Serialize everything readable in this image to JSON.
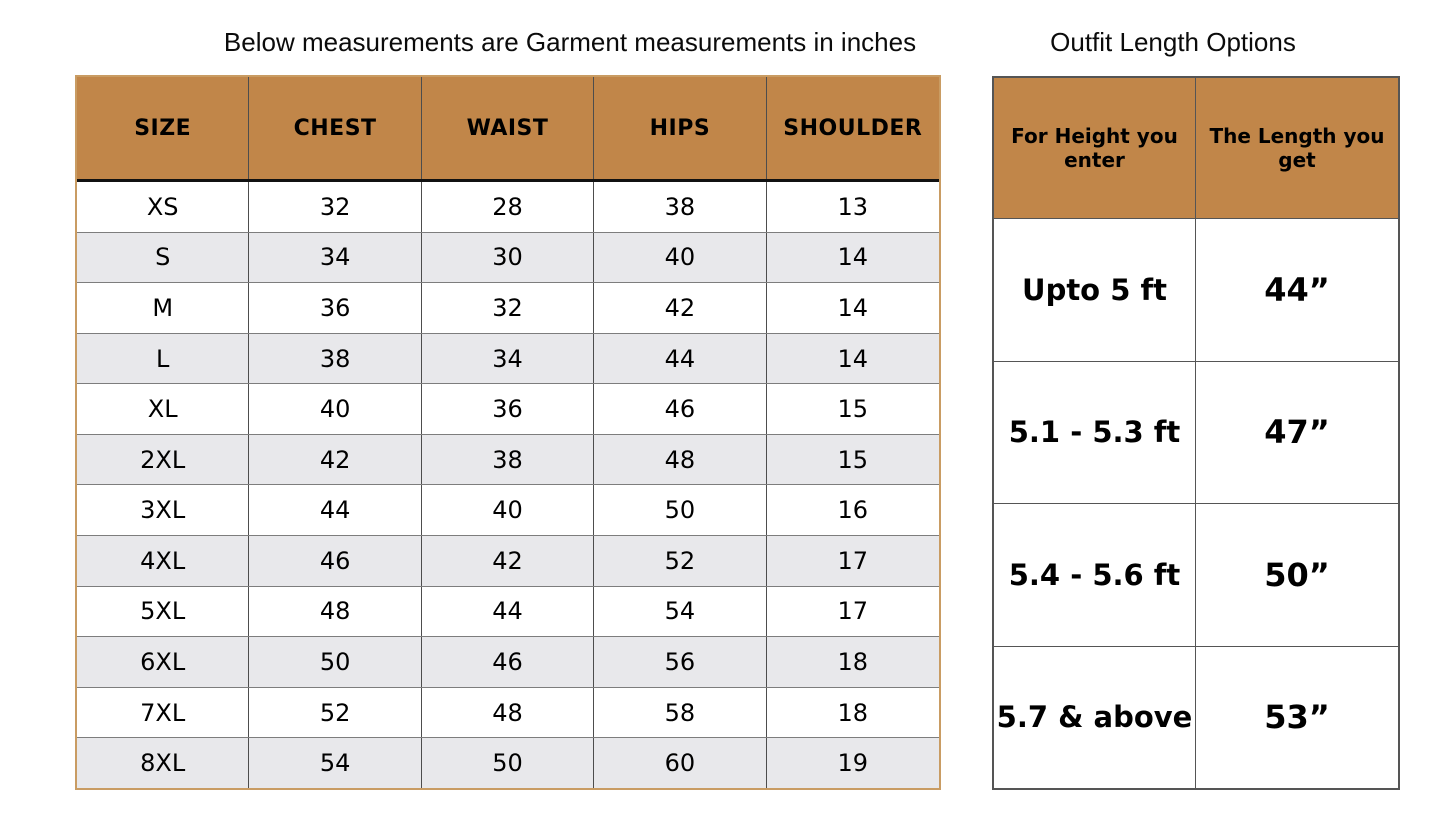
{
  "chart_data": [
    {
      "type": "table",
      "title": "Below measurements are Garment measurements in inches",
      "columns": [
        "SIZE",
        "CHEST",
        "WAIST",
        "HIPS",
        "SHOULDER"
      ],
      "rows": [
        [
          "XS",
          "32",
          "28",
          "38",
          "13"
        ],
        [
          "S",
          "34",
          "30",
          "40",
          "14"
        ],
        [
          "M",
          "36",
          "32",
          "42",
          "14"
        ],
        [
          "L",
          "38",
          "34",
          "44",
          "14"
        ],
        [
          "XL",
          "40",
          "36",
          "46",
          "15"
        ],
        [
          "2XL",
          "42",
          "38",
          "48",
          "15"
        ],
        [
          "3XL",
          "44",
          "40",
          "50",
          "16"
        ],
        [
          "4XL",
          "46",
          "42",
          "52",
          "17"
        ],
        [
          "5XL",
          "48",
          "44",
          "54",
          "17"
        ],
        [
          "6XL",
          "50",
          "46",
          "56",
          "18"
        ],
        [
          "7XL",
          "52",
          "48",
          "58",
          "18"
        ],
        [
          "8XL",
          "54",
          "50",
          "60",
          "19"
        ]
      ],
      "layout": {
        "header_position": "top",
        "grid": true,
        "alternating_rows": true
      }
    },
    {
      "type": "table",
      "title": "Outfit Length Options",
      "columns": [
        "For Height you enter",
        "The Length you get"
      ],
      "rows": [
        [
          "Upto 5 ft",
          "44”"
        ],
        [
          "5.1 - 5.3 ft",
          "47”"
        ],
        [
          "5.4 - 5.6 ft",
          "50”"
        ],
        [
          "5.7 & above",
          "53”"
        ]
      ],
      "layout": {
        "header_position": "top",
        "grid": true,
        "alternating_rows": false
      }
    }
  ],
  "colors": {
    "header_bg": "#C18649",
    "alt_row_bg": "#E8E8EB",
    "row_bg": "#FFFFFF",
    "text": "#000000",
    "left_table_outer_border": "#C99C63",
    "column_line": "#4D4D4D",
    "row_line": "#7D7D7D",
    "header_divider": "#111111",
    "right_table_border": "#555555"
  }
}
